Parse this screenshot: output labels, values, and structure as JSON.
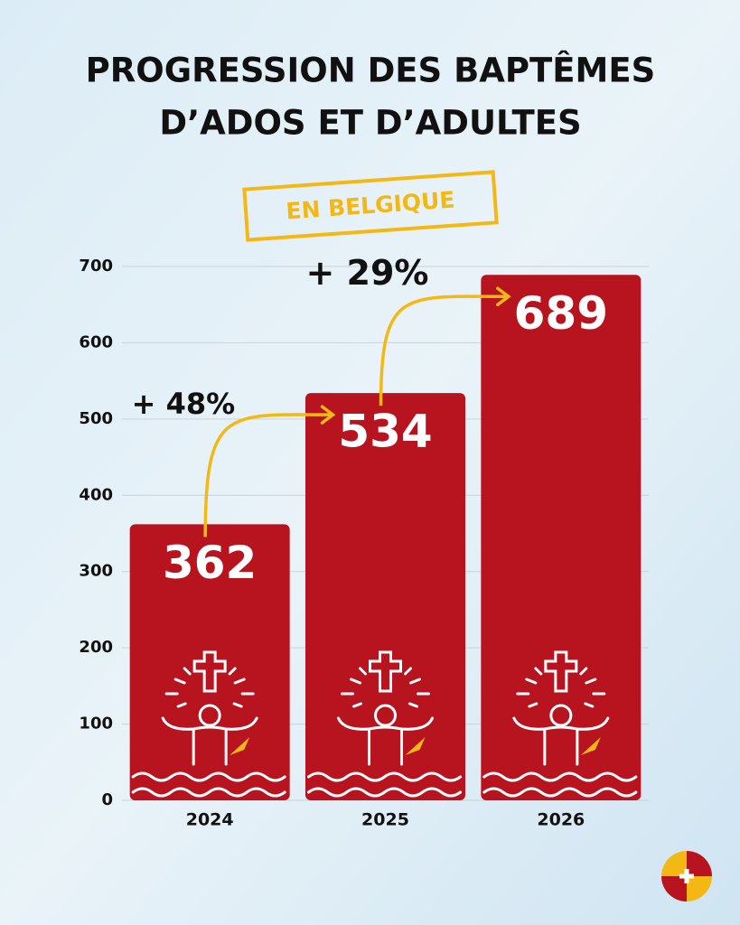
{
  "chart_data": {
    "type": "bar",
    "title": [
      "PROGRESSION DES BAPTÊMES",
      "D’ADOS ET D’ADULTES"
    ],
    "subtitle": "EN BELGIQUE",
    "categories": [
      "2024",
      "2025",
      "2026"
    ],
    "values": [
      362,
      534,
      689
    ],
    "color": "#b8141f",
    "ylim": [
      0,
      700
    ],
    "yticks": [
      0,
      100,
      200,
      300,
      400,
      500,
      600,
      700
    ],
    "grid": true,
    "annotations": [
      {
        "text": "+ 48%"
      },
      {
        "text": "+ 29%"
      }
    ]
  }
}
